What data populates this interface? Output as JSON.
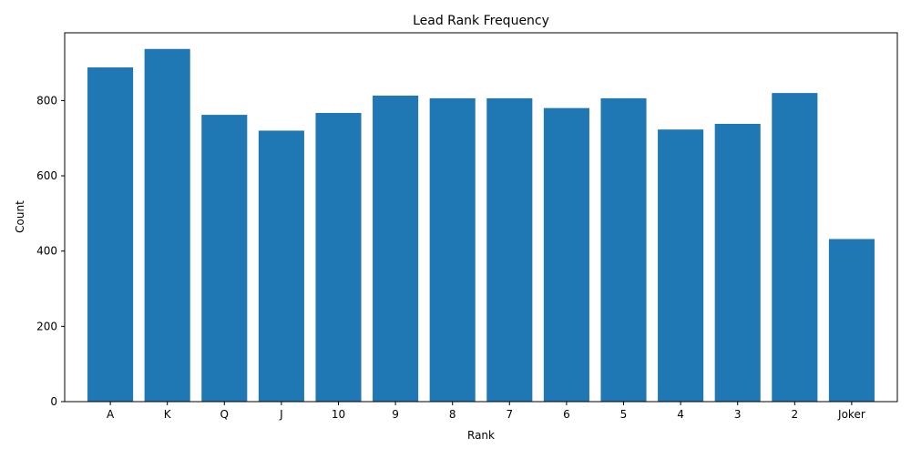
{
  "chart_data": {
    "type": "bar",
    "title": "Lead Rank Frequency",
    "xlabel": "Rank",
    "ylabel": "Count",
    "categories": [
      "A",
      "K",
      "Q",
      "J",
      "10",
      "9",
      "8",
      "7",
      "6",
      "5",
      "4",
      "3",
      "2",
      "Joker"
    ],
    "values": [
      888,
      937,
      762,
      720,
      767,
      813,
      806,
      806,
      780,
      806,
      723,
      738,
      820,
      432
    ],
    "ylim": [
      0,
      980
    ],
    "yticks": [
      0,
      200,
      400,
      600,
      800
    ],
    "bar_color": "#1f77b4",
    "grid": false,
    "legend": "none"
  }
}
